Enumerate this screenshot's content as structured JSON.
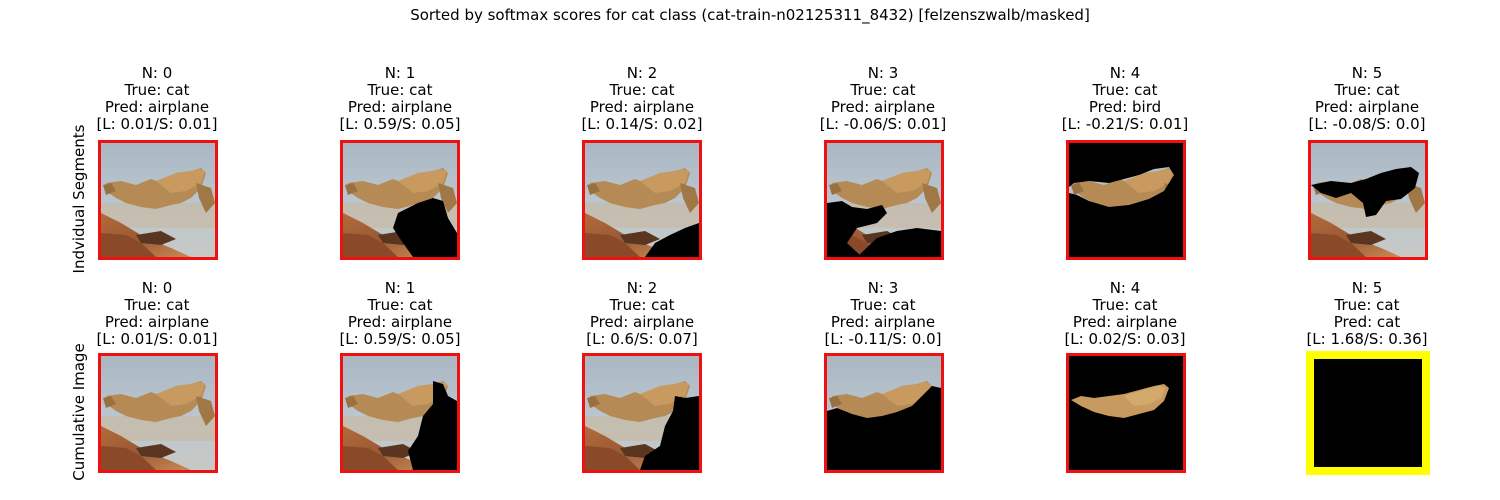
{
  "figure": {
    "title": "Sorted by softmax scores for cat class (cat-train-n02125311_8432) [felzenszwalb/masked]",
    "row_labels": [
      "Indvidual Segments",
      "Cumulative Image"
    ],
    "colors": {
      "default_border": "#ee1111",
      "highlight_border": "#ffff00"
    }
  },
  "rows": [
    {
      "name": "individual",
      "panels": [
        {
          "n": "N: 0",
          "true": "True: cat",
          "pred": "Pred: airplane",
          "scores": "[L: 0.01/S: 0.01]"
        },
        {
          "n": "N: 1",
          "true": "True: cat",
          "pred": "Pred: airplane",
          "scores": "[L: 0.59/S: 0.05]"
        },
        {
          "n": "N: 2",
          "true": "True: cat",
          "pred": "Pred: airplane",
          "scores": "[L: 0.14/S: 0.02]"
        },
        {
          "n": "N: 3",
          "true": "True: cat",
          "pred": "Pred: airplane",
          "scores": "[L: -0.06/S: 0.01]"
        },
        {
          "n": "N: 4",
          "true": "True: cat",
          "pred": "Pred: bird",
          "scores": "[L: -0.21/S: 0.01]"
        },
        {
          "n": "N: 5",
          "true": "True: cat",
          "pred": "Pred: airplane",
          "scores": "[L: -0.08/S: 0.0]"
        }
      ]
    },
    {
      "name": "cumulative",
      "panels": [
        {
          "n": "N: 0",
          "true": "True: cat",
          "pred": "Pred: airplane",
          "scores": "[L: 0.01/S: 0.01]"
        },
        {
          "n": "N: 1",
          "true": "True: cat",
          "pred": "Pred: airplane",
          "scores": "[L: 0.59/S: 0.05]"
        },
        {
          "n": "N: 2",
          "true": "True: cat",
          "pred": "Pred: airplane",
          "scores": "[L: 0.6/S: 0.07]"
        },
        {
          "n": "N: 3",
          "true": "True: cat",
          "pred": "Pred: airplane",
          "scores": "[L: -0.11/S: 0.0]"
        },
        {
          "n": "N: 4",
          "true": "True: cat",
          "pred": "Pred: airplane",
          "scores": "[L: 0.02/S: 0.03]"
        },
        {
          "n": "N: 5",
          "true": "True: cat",
          "pred": "Pred: cat",
          "scores": "[L: 1.68/S: 0.36]"
        }
      ]
    }
  ]
}
